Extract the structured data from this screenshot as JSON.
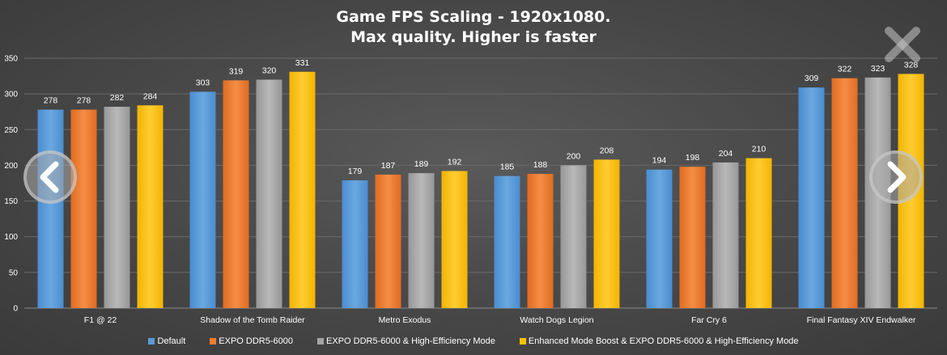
{
  "title_line1": "Game FPS Scaling - 1920x1080.",
  "title_line2": "Max quality. Higher is faster",
  "nav": {
    "prev_icon": "chevron-left-icon",
    "next_icon": "chevron-right-icon",
    "close_icon": "close-icon"
  },
  "chart_data": {
    "type": "bar",
    "title": "Game FPS Scaling - 1920x1080. Max quality. Higher is faster",
    "xlabel": "",
    "ylabel": "",
    "ylim": [
      0,
      350
    ],
    "yticks": [
      "0",
      "50",
      "100",
      "150",
      "200",
      "250",
      "300",
      "350"
    ],
    "grid": true,
    "legend_position": "bottom",
    "categories": [
      "F1 @ 22",
      "Shadow of the Tomb Raider",
      "Metro Exodus",
      "Watch Dogs Legion",
      "Far Cry 6",
      "Final Fantasy XIV Endwalker"
    ],
    "series": [
      {
        "name": "Default",
        "color": "#5b9bd5",
        "values": [
          278,
          303,
          179,
          185,
          194,
          309
        ]
      },
      {
        "name": "EXPO DDR5-6000",
        "color": "#ed7d31",
        "values": [
          278,
          319,
          187,
          188,
          198,
          322
        ]
      },
      {
        "name": "EXPO DDR5-6000 & High-Efficiency Mode",
        "color": "#a5a5a5",
        "values": [
          282,
          320,
          189,
          200,
          204,
          323
        ]
      },
      {
        "name": "Enhanced Mode Boost & EXPO DDR5-6000 & High-Efficiency Mode",
        "color": "#ffc000",
        "values": [
          284,
          331,
          192,
          208,
          210,
          328
        ]
      }
    ]
  }
}
